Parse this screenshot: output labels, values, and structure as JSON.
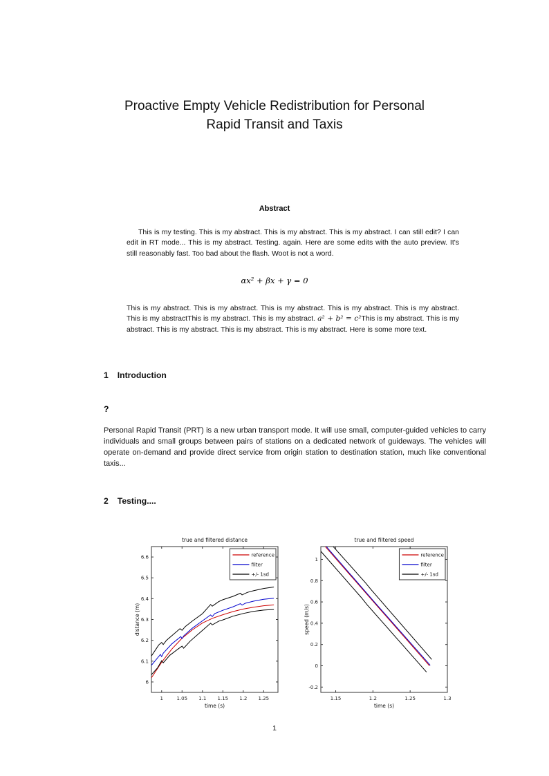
{
  "title": {
    "line1": "Proactive Empty Vehicle Redistribution for Personal",
    "line2": "Rapid Transit and Taxis"
  },
  "abstract": {
    "heading": "Abstract",
    "para1": "This is my testing. This is my abstract. This is my abstract. This is my abstract. I can still edit? I can edit in RT mode... This is my abstract. Testing. again. Here are some edits with the auto preview. It's still reasonably fast. Too bad about the flash. Woot is not a word.",
    "equation": "αx² + βx + γ = 0",
    "para2_pre": "This is my abstract. This is my abstract. This is my abstract. This is my abstract. This is my abstract. This is my abstractThis is my abstract. This is my abstract. ",
    "para2_math": "a² + b² = c²",
    "para2_post": "This is my abstract. This is my abstract. This is my abstract. This is my abstract. This is my abstract. Here is some more text."
  },
  "sections": [
    {
      "number": "1",
      "heading": "Introduction"
    },
    {
      "number": "2",
      "heading": "Testing...."
    }
  ],
  "subsection_qmark": "?",
  "intro_para": "Personal Rapid Transit (PRT) is a new urban transport mode.  It will use small, computer-guided vehicles to carry individuals and small groups between pairs of stations on a dedicated network of guideways.  The vehicles will operate on-demand and provide direct service from origin station to destination station, much like conventional taxis...",
  "page": {
    "number": "1"
  },
  "chart_data": [
    {
      "type": "line",
      "name": "distance-plot",
      "title": "true and filtered distance",
      "xlabel": "time (s)",
      "ylabel": "distance (m)",
      "xlim": [
        0.975,
        1.285
      ],
      "ylim": [
        5.95,
        6.65
      ],
      "xticks": [
        1,
        1.05,
        1.1,
        1.15,
        1.2,
        1.25
      ],
      "yticks": [
        6,
        6.1,
        6.2,
        6.3,
        6.4,
        6.5,
        6.6
      ],
      "legend": [
        {
          "label": "reference",
          "color": "#cc0000"
        },
        {
          "label": "filter",
          "color": "#0000cc"
        },
        {
          "label": "+/- 1sd",
          "color": "#000000"
        }
      ],
      "series": [
        {
          "name": "reference",
          "color": "#cc0000",
          "points": [
            [
              0.975,
              6.02
            ],
            [
              1.0,
              6.095
            ],
            [
              1.025,
              6.158
            ],
            [
              1.05,
              6.21
            ],
            [
              1.075,
              6.25
            ],
            [
              1.1,
              6.283
            ],
            [
              1.125,
              6.306
            ],
            [
              1.15,
              6.323
            ],
            [
              1.175,
              6.338
            ],
            [
              1.2,
              6.35
            ],
            [
              1.225,
              6.359
            ],
            [
              1.25,
              6.366
            ],
            [
              1.275,
              6.37
            ]
          ]
        },
        {
          "name": "filter",
          "color": "#0000cc",
          "points": [
            [
              0.975,
              6.08
            ],
            [
              0.997,
              6.132
            ],
            [
              1.0,
              6.122
            ],
            [
              1.004,
              6.138
            ],
            [
              1.025,
              6.183
            ],
            [
              1.047,
              6.218
            ],
            [
              1.05,
              6.208
            ],
            [
              1.054,
              6.221
            ],
            [
              1.075,
              6.258
            ],
            [
              1.099,
              6.292
            ],
            [
              1.12,
              6.322
            ],
            [
              1.124,
              6.314
            ],
            [
              1.13,
              6.328
            ],
            [
              1.15,
              6.344
            ],
            [
              1.175,
              6.361
            ],
            [
              1.193,
              6.376
            ],
            [
              1.197,
              6.369
            ],
            [
              1.205,
              6.378
            ],
            [
              1.225,
              6.388
            ],
            [
              1.25,
              6.397
            ],
            [
              1.275,
              6.402
            ]
          ]
        },
        {
          "name": "plus-1sd",
          "color": "#000000",
          "points": [
            [
              0.975,
              6.125
            ],
            [
              0.993,
              6.178
            ],
            [
              1.0,
              6.19
            ],
            [
              1.004,
              6.18
            ],
            [
              1.012,
              6.2
            ],
            [
              1.025,
              6.222
            ],
            [
              1.045,
              6.256
            ],
            [
              1.05,
              6.248
            ],
            [
              1.058,
              6.266
            ],
            [
              1.075,
              6.292
            ],
            [
              1.1,
              6.328
            ],
            [
              1.12,
              6.372
            ],
            [
              1.124,
              6.364
            ],
            [
              1.14,
              6.386
            ],
            [
              1.15,
              6.395
            ],
            [
              1.175,
              6.411
            ],
            [
              1.193,
              6.426
            ],
            [
              1.197,
              6.418
            ],
            [
              1.21,
              6.43
            ],
            [
              1.225,
              6.438
            ],
            [
              1.25,
              6.449
            ],
            [
              1.275,
              6.456
            ]
          ]
        },
        {
          "name": "minus-1sd",
          "color": "#000000",
          "points": [
            [
              0.975,
              6.035
            ],
            [
              0.99,
              6.068
            ],
            [
              1.0,
              6.102
            ],
            [
              1.004,
              6.092
            ],
            [
              1.02,
              6.128
            ],
            [
              1.04,
              6.158
            ],
            [
              1.05,
              6.172
            ],
            [
              1.054,
              6.162
            ],
            [
              1.07,
              6.196
            ],
            [
              1.1,
              6.248
            ],
            [
              1.12,
              6.282
            ],
            [
              1.124,
              6.274
            ],
            [
              1.14,
              6.292
            ],
            [
              1.15,
              6.298
            ],
            [
              1.175,
              6.316
            ],
            [
              1.2,
              6.329
            ],
            [
              1.225,
              6.339
            ],
            [
              1.25,
              6.345
            ],
            [
              1.275,
              6.348
            ]
          ]
        }
      ]
    },
    {
      "type": "line",
      "name": "speed-plot",
      "title": "true and filtered speed",
      "xlabel": "time (s)",
      "ylabel": "speed (m/s)",
      "xlim": [
        1.13,
        1.3
      ],
      "ylim": [
        -0.25,
        1.12
      ],
      "xticks": [
        1.15,
        1.2,
        1.25,
        1.3
      ],
      "yticks": [
        -0.2,
        0,
        0.2,
        0.4,
        0.6,
        0.8,
        1
      ],
      "legend": [
        {
          "label": "reference",
          "color": "#cc0000"
        },
        {
          "label": "filter",
          "color": "#0000cc"
        },
        {
          "label": "+/- 1sd",
          "color": "#000000"
        }
      ],
      "series": [
        {
          "name": "reference",
          "color": "#cc0000",
          "points": [
            [
              1.1285,
              1.18
            ],
            [
              1.2,
              0.607
            ],
            [
              1.276,
              0.0
            ]
          ]
        },
        {
          "name": "filter",
          "color": "#0000cc",
          "points": [
            [
              1.13,
              1.18
            ],
            [
              1.2,
              0.615
            ],
            [
              1.277,
              0.005
            ]
          ]
        },
        {
          "name": "plus-1sd",
          "color": "#000000",
          "points": [
            [
              1.139,
              1.18
            ],
            [
              1.19,
              0.78
            ],
            [
              1.197,
              0.72
            ],
            [
              1.279,
              0.06
            ]
          ]
        },
        {
          "name": "minus-1sd",
          "color": "#000000",
          "points": [
            [
              1.117,
              1.18
            ],
            [
              1.185,
              0.636
            ],
            [
              1.192,
              0.575
            ],
            [
              1.272,
              -0.06
            ]
          ]
        }
      ]
    }
  ]
}
